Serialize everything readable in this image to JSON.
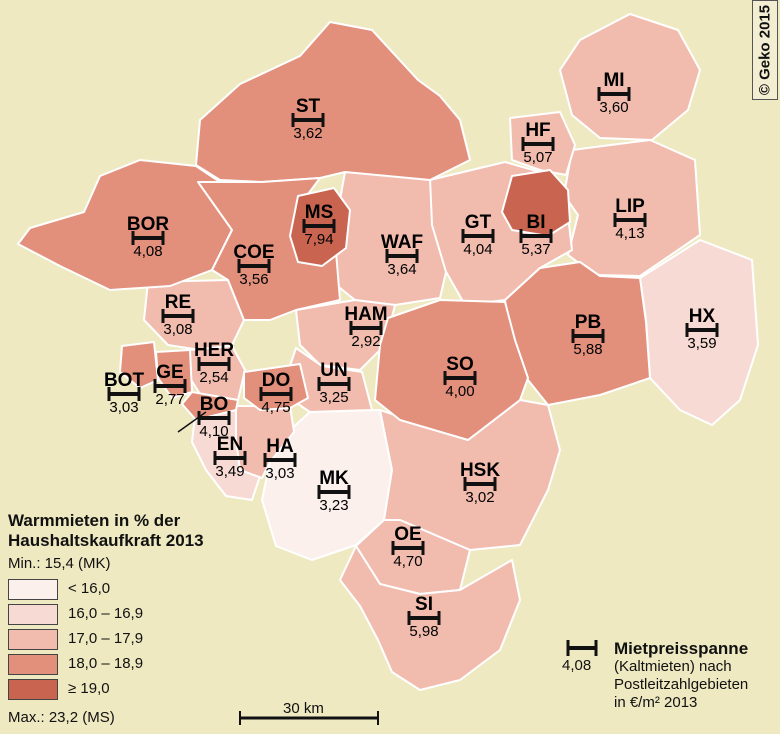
{
  "copyright": "© Geko 2015",
  "colors": {
    "c1": "#fbf0ec",
    "c2": "#f7dad3",
    "c3": "#f1bcae",
    "c4": "#e2907c",
    "c5": "#c8644f",
    "border": "#ffffff",
    "background": "#efe9c2"
  },
  "districts": [
    {
      "code": "ST",
      "value": "3,62",
      "cls": 4
    },
    {
      "code": "MI",
      "value": "3,60",
      "cls": 3
    },
    {
      "code": "HF",
      "value": "5,07",
      "cls": 3
    },
    {
      "code": "BI",
      "value": "5,37",
      "cls": 5
    },
    {
      "code": "LIP",
      "value": "4,13",
      "cls": 3
    },
    {
      "code": "BOR",
      "value": "4,08",
      "cls": 4
    },
    {
      "code": "MS",
      "value": "7,94",
      "cls": 5
    },
    {
      "code": "COE",
      "value": "3,56",
      "cls": 4
    },
    {
      "code": "WAF",
      "value": "3,64",
      "cls": 3
    },
    {
      "code": "GT",
      "value": "4,04",
      "cls": 3
    },
    {
      "code": "RE",
      "value": "3,08",
      "cls": 3
    },
    {
      "code": "HAM",
      "value": "2,92",
      "cls": 3
    },
    {
      "code": "PB",
      "value": "5,88",
      "cls": 4
    },
    {
      "code": "HX",
      "value": "3,59",
      "cls": 2
    },
    {
      "code": "HER",
      "value": "2,54",
      "cls": 3
    },
    {
      "code": "BOT",
      "value": "3,03",
      "cls": 4
    },
    {
      "code": "GE",
      "value": "2,77",
      "cls": 4
    },
    {
      "code": "DO",
      "value": "4,75",
      "cls": 4
    },
    {
      "code": "UN",
      "value": "3,25",
      "cls": 3
    },
    {
      "code": "SO",
      "value": "4,00",
      "cls": 4
    },
    {
      "code": "BO",
      "value": "4,10",
      "cls": 4
    },
    {
      "code": "EN",
      "value": "3,49",
      "cls": 2
    },
    {
      "code": "HA",
      "value": "3,03",
      "cls": 3
    },
    {
      "code": "MK",
      "value": "3,23",
      "cls": 1
    },
    {
      "code": "HSK",
      "value": "3,02",
      "cls": 3
    },
    {
      "code": "OE",
      "value": "4,70",
      "cls": 3
    },
    {
      "code": "SI",
      "value": "5,98",
      "cls": 3
    }
  ],
  "legend": {
    "title_line1": "Warmmieten in % der",
    "title_line2": "Haushaltskaufkraft 2013",
    "min": "Min.: 15,4 (MK)",
    "max": "Max.: 23,2 (MS)",
    "classes": [
      {
        "label": "< 16,0",
        "color": "#fbf0ec"
      },
      {
        "label": "16,0 – 16,9",
        "color": "#f7dad3"
      },
      {
        "label": "17,0 – 17,9",
        "color": "#f1bcae"
      },
      {
        "label": "18,0 – 18,9",
        "color": "#e2907c"
      },
      {
        "label": "≥ 19,0",
        "color": "#c8644f"
      }
    ]
  },
  "rent_legend": {
    "sample_value": "4,08",
    "title": "Mietpreisspanne",
    "line2": "(Kaltmieten) nach",
    "line3": "Postleitzahlgebieten",
    "line4": "in €/m² 2013"
  },
  "scale": {
    "label": "30 km"
  }
}
